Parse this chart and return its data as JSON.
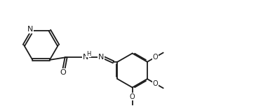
{
  "bg_color": "#ffffff",
  "line_color": "#1a1a1a",
  "line_width": 1.3,
  "font_size": 7.0,
  "figsize": [
    3.92,
    1.52
  ],
  "dpi": 100,
  "xlim": [
    0.0,
    10.0
  ],
  "ylim": [
    0.0,
    4.0
  ]
}
